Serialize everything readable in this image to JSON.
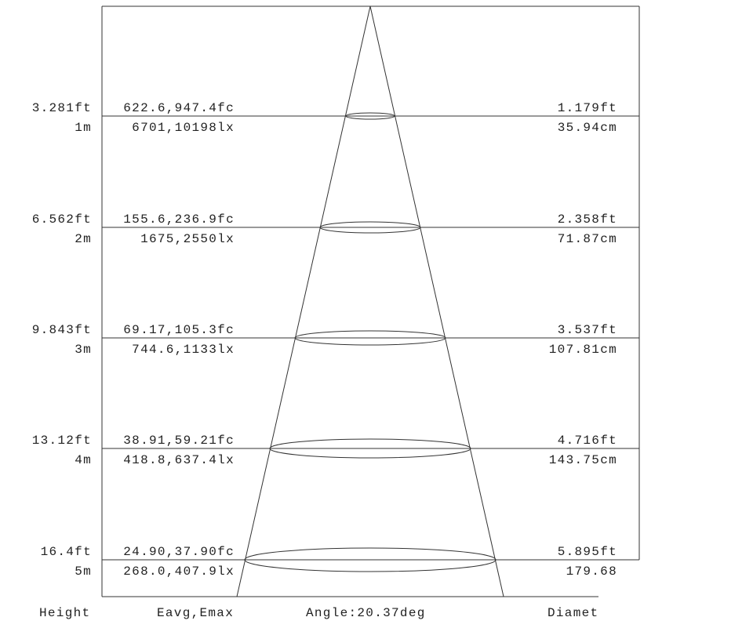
{
  "rows": [
    {
      "height_ft": "3.281ft",
      "height_m": "1m",
      "e_fc": "622.6,947.4fc",
      "e_lx": "6701,10198lx",
      "diam_ft": "1.179ft",
      "diam_cm": "35.94cm"
    },
    {
      "height_ft": "6.562ft",
      "height_m": "2m",
      "e_fc": "155.6,236.9fc",
      "e_lx": "1675,2550lx",
      "diam_ft": "2.358ft",
      "diam_cm": "71.87cm"
    },
    {
      "height_ft": "9.843ft",
      "height_m": "3m",
      "e_fc": "69.17,105.3fc",
      "e_lx": "744.6,1133lx",
      "diam_ft": "3.537ft",
      "diam_cm": "107.81cm"
    },
    {
      "height_ft": "13.12ft",
      "height_m": "4m",
      "e_fc": "38.91,59.21fc",
      "e_lx": "418.8,637.4lx",
      "diam_ft": "4.716ft",
      "diam_cm": "143.75cm"
    },
    {
      "height_ft": "16.4ft",
      "height_m": "5m",
      "e_fc": "24.90,37.90fc",
      "e_lx": "268.0,407.9lx",
      "diam_ft": "5.895ft",
      "diam_cm": "179.68"
    }
  ],
  "footer": {
    "height": "Height",
    "eavg": "Eavg,Emax",
    "angle": "Angle:20.37deg",
    "diameter": "Diamet"
  }
}
